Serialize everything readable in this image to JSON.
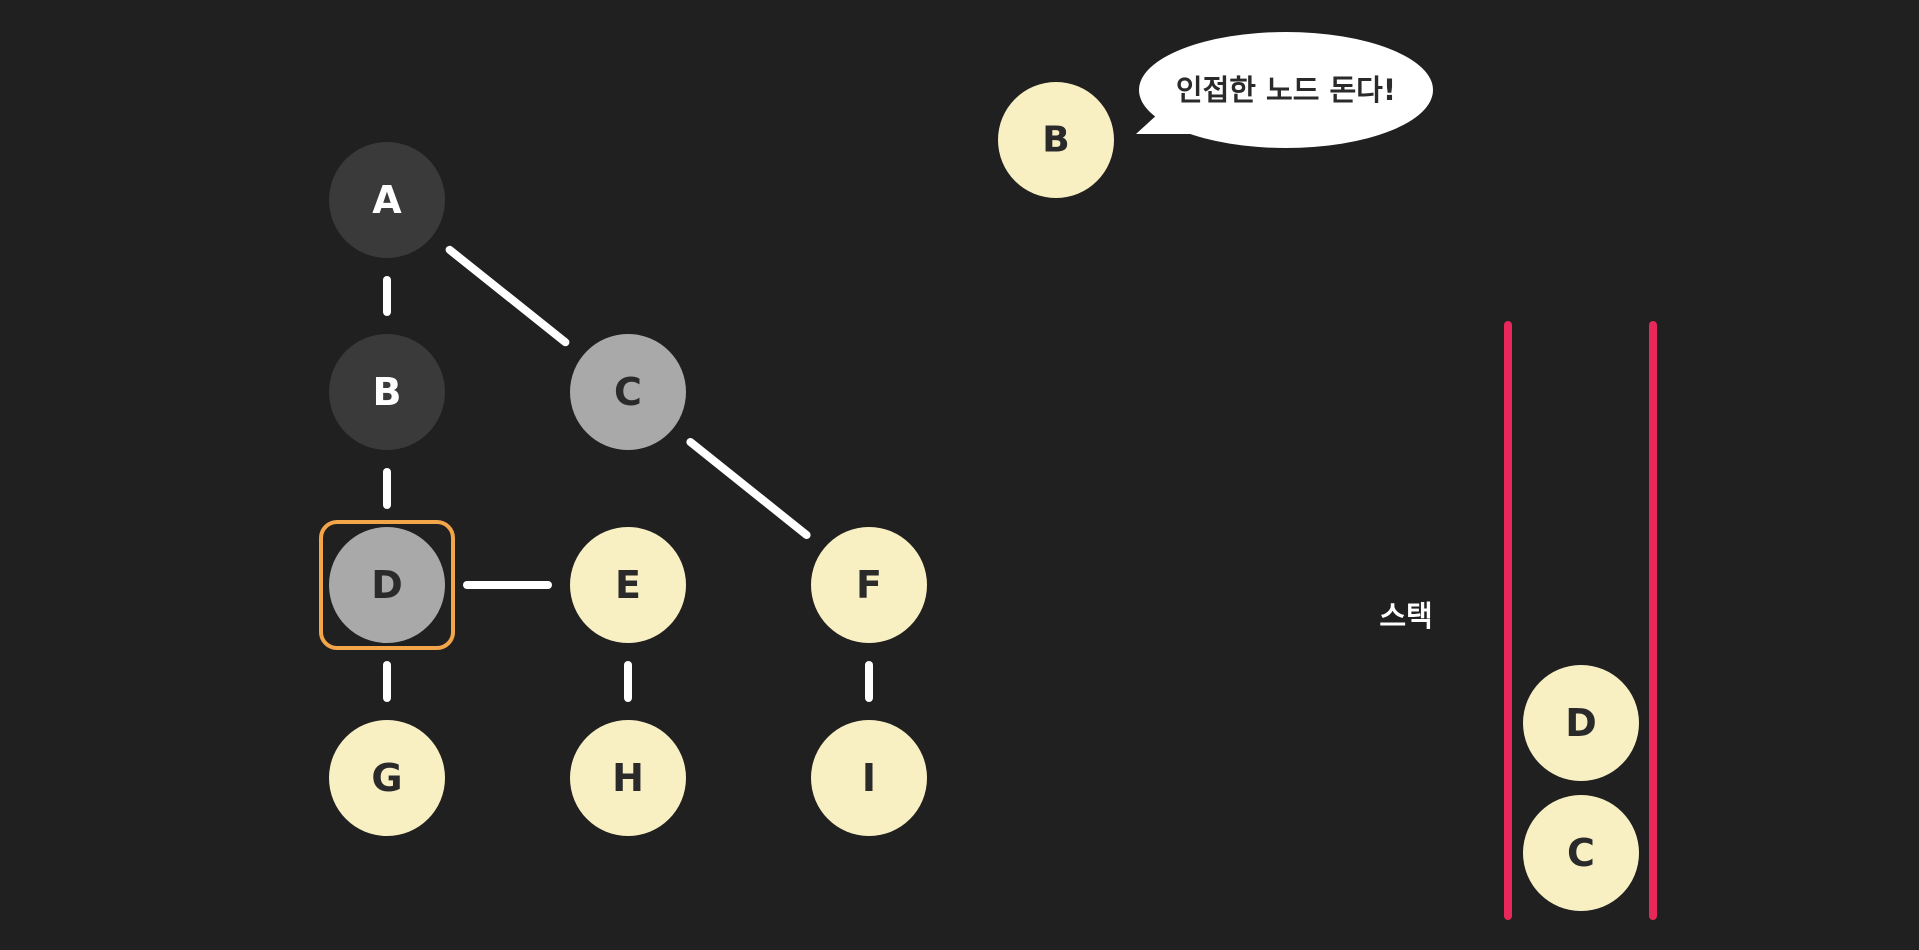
{
  "colors": {
    "background": "#202020",
    "visited_dark": "#3a3a3a",
    "visited_grey": "#a9a9a9",
    "unvisited": "#f8f0c3",
    "edge": "#ffffff",
    "highlight": "#f3a54a",
    "stack_wall": "#e8285a",
    "text_dark": "#2a2a2a",
    "text_light": "#ffffff"
  },
  "graph": {
    "nodes": [
      {
        "id": "A",
        "label": "A",
        "state": "visited_dark"
      },
      {
        "id": "B",
        "label": "B",
        "state": "visited_dark"
      },
      {
        "id": "C",
        "label": "C",
        "state": "visited_grey"
      },
      {
        "id": "D",
        "label": "D",
        "state": "visited_grey",
        "current": true
      },
      {
        "id": "E",
        "label": "E",
        "state": "unvisited"
      },
      {
        "id": "F",
        "label": "F",
        "state": "unvisited"
      },
      {
        "id": "G",
        "label": "G",
        "state": "unvisited"
      },
      {
        "id": "H",
        "label": "H",
        "state": "unvisited"
      },
      {
        "id": "I",
        "label": "I",
        "state": "unvisited"
      }
    ],
    "edges": [
      [
        "A",
        "B"
      ],
      [
        "A",
        "C"
      ],
      [
        "B",
        "D"
      ],
      [
        "C",
        "F"
      ],
      [
        "D",
        "E"
      ],
      [
        "D",
        "G"
      ],
      [
        "E",
        "H"
      ],
      [
        "F",
        "I"
      ]
    ]
  },
  "current_node": {
    "label": "B"
  },
  "speech_bubble": {
    "text": "인접한 노드 돈다!"
  },
  "stack": {
    "label": "스택",
    "items": [
      "D",
      "C"
    ]
  }
}
